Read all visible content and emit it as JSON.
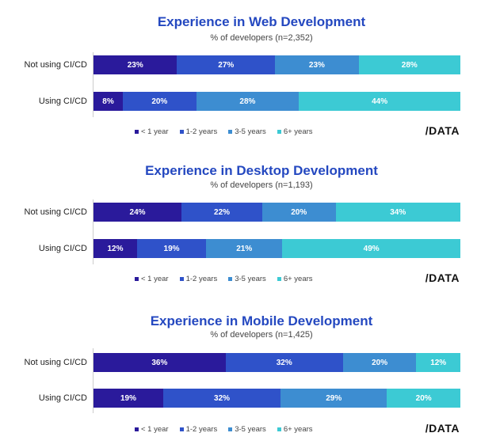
{
  "colors": {
    "lt1": "#2a1a9b",
    "y1_2": "#2f52c9",
    "y3_5": "#3d8dd1",
    "y6p": "#3ccad4",
    "title": "#2448c0"
  },
  "legend": [
    "< 1 year",
    "1-2 years",
    "3-5 years",
    "6+ years"
  ],
  "brand": "/DATA",
  "chart_data": [
    {
      "type": "bar",
      "orientation": "horizontal",
      "stacked": true,
      "title": "Experience in Web Development",
      "subtitle": "% of developers (n=2,352)",
      "categories": [
        "Not using CI/CD",
        "Using CI/CD"
      ],
      "series": [
        {
          "name": "< 1 year",
          "values": [
            23,
            8
          ]
        },
        {
          "name": "1-2 years",
          "values": [
            27,
            20
          ]
        },
        {
          "name": "3-5 years",
          "values": [
            23,
            28
          ]
        },
        {
          "name": "6+ years",
          "values": [
            28,
            44
          ]
        }
      ]
    },
    {
      "type": "bar",
      "orientation": "horizontal",
      "stacked": true,
      "title": "Experience in Desktop Development",
      "subtitle": "% of developers (n=1,193)",
      "categories": [
        "Not using CI/CD",
        "Using CI/CD"
      ],
      "series": [
        {
          "name": "< 1 year",
          "values": [
            24,
            12
          ]
        },
        {
          "name": "1-2 years",
          "values": [
            22,
            19
          ]
        },
        {
          "name": "3-5 years",
          "values": [
            20,
            21
          ]
        },
        {
          "name": "6+ years",
          "values": [
            34,
            49
          ]
        }
      ]
    },
    {
      "type": "bar",
      "orientation": "horizontal",
      "stacked": true,
      "title": "Experience in Mobile Development",
      "subtitle": "% of developers (n=1,425)",
      "categories": [
        "Not using CI/CD",
        "Using CI/CD"
      ],
      "series": [
        {
          "name": "< 1 year",
          "values": [
            36,
            19
          ]
        },
        {
          "name": "1-2 years",
          "values": [
            32,
            32
          ]
        },
        {
          "name": "3-5 years",
          "values": [
            20,
            29
          ]
        },
        {
          "name": "6+ years",
          "values": [
            12,
            20
          ]
        }
      ]
    }
  ]
}
